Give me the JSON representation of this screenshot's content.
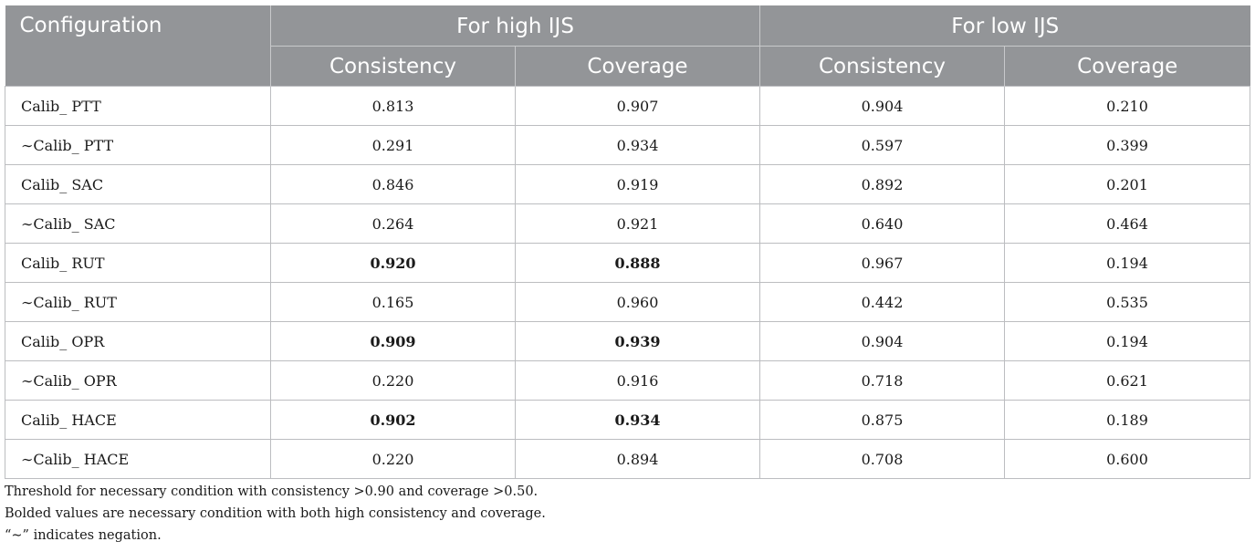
{
  "header": {
    "configuration": "Configuration",
    "group_high": "For high IJS",
    "group_low": "For low IJS",
    "consistency": "Consistency",
    "coverage": "Coverage"
  },
  "rows": [
    {
      "config": "Calib_ PTT",
      "high_consistency": "0.813",
      "high_coverage": "0.907",
      "low_consistency": "0.904",
      "low_coverage": "0.210",
      "bold": false
    },
    {
      "config": "∼Calib_ PTT",
      "high_consistency": "0.291",
      "high_coverage": "0.934",
      "low_consistency": "0.597",
      "low_coverage": "0.399",
      "bold": false
    },
    {
      "config": "Calib_ SAC",
      "high_consistency": "0.846",
      "high_coverage": "0.919",
      "low_consistency": "0.892",
      "low_coverage": "0.201",
      "bold": false
    },
    {
      "config": "∼Calib_ SAC",
      "high_consistency": "0.264",
      "high_coverage": "0.921",
      "low_consistency": "0.640",
      "low_coverage": "0.464",
      "bold": false
    },
    {
      "config": "Calib_ RUT",
      "high_consistency": "0.920",
      "high_coverage": "0.888",
      "low_consistency": "0.967",
      "low_coverage": "0.194",
      "bold": true
    },
    {
      "config": "∼Calib_ RUT",
      "high_consistency": "0.165",
      "high_coverage": "0.960",
      "low_consistency": "0.442",
      "low_coverage": "0.535",
      "bold": false
    },
    {
      "config": "Calib_ OPR",
      "high_consistency": "0.909",
      "high_coverage": "0.939",
      "low_consistency": "0.904",
      "low_coverage": "0.194",
      "bold": true
    },
    {
      "config": "∼Calib_ OPR",
      "high_consistency": "0.220",
      "high_coverage": "0.916",
      "low_consistency": "0.718",
      "low_coverage": "0.621",
      "bold": false
    },
    {
      "config": "Calib_ HACE",
      "high_consistency": "0.902",
      "high_coverage": "0.934",
      "low_consistency": "0.875",
      "low_coverage": "0.189",
      "bold": true
    },
    {
      "config": "∼Calib_ HACE",
      "high_consistency": "0.220",
      "high_coverage": "0.894",
      "low_consistency": "0.708",
      "low_coverage": "0.600",
      "bold": false
    }
  ],
  "footnotes": [
    "Threshold for necessary condition with consistency >0.90 and coverage >0.50.",
    "Bolded values are necessary condition with both high consistency and coverage.",
    "“∼” indicates negation."
  ]
}
